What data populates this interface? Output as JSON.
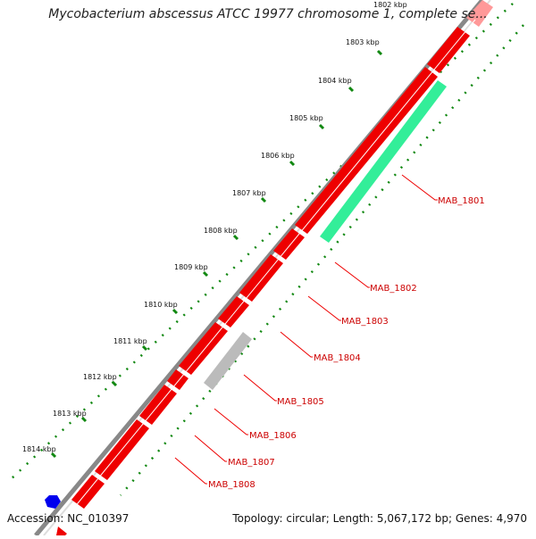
{
  "title": "Mycobacterium abscessus ATCC 19977 chromosome 1, complete se...",
  "accession": "Accession: NC_010397",
  "summary": "Topology: circular; Length: 5,067,172 bp; Genes: 4,970",
  "ruler_labels": [
    "1802 kbp",
    "1803 kbp",
    "1804 kbp",
    "1805 kbp",
    "1806 kbp",
    "1807 kbp",
    "1808 kbp",
    "1809 kbp",
    "1810 kbp",
    "1811 kbp",
    "1812 kbp",
    "1813 kbp",
    "1814 kbp"
  ],
  "gene_labels": [
    "MAB_1801",
    "MAB_1802",
    "MAB_1803",
    "MAB_1804",
    "MAB_1805",
    "MAB_1806",
    "MAB_1807",
    "MAB_1808"
  ],
  "colors": {
    "forward_gene": "#ee0000",
    "highlight_gene": "#33ee99",
    "pseudo_gene": "#bbbbbb",
    "other_feature": "#0000ee",
    "ruler": "#118811",
    "backbone": "#888888"
  }
}
